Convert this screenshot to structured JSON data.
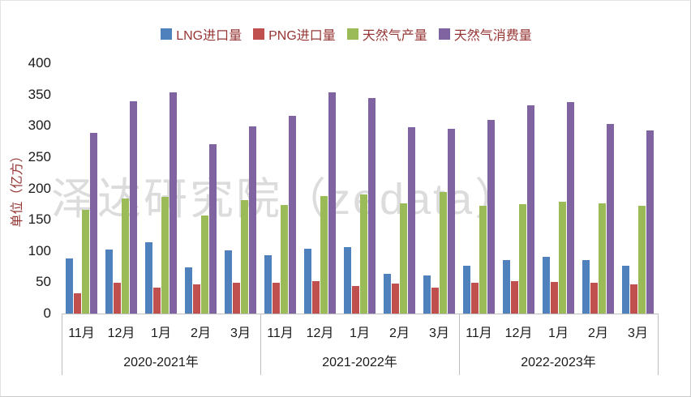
{
  "watermark": {
    "text": "泽达研究院（zedata）"
  },
  "colors": {
    "lng_blue": "#4F81BD",
    "png_red": "#C0504D",
    "production_green": "#9BBB59",
    "consumption_purple": "#8064A2",
    "axis_line": "#bfbfbf",
    "axis_title_red": "#963634",
    "watermark_gray": "#dcdcdc"
  },
  "chart_data": {
    "type": "bar",
    "title": "",
    "xlabel": "",
    "ylabel": "单位（亿方）",
    "ylim": [
      0,
      400
    ],
    "ytick_step": 50,
    "yticks": [
      0,
      50,
      100,
      150,
      200,
      250,
      300,
      350,
      400
    ],
    "grid": false,
    "legend_position": "top",
    "period_groups": [
      {
        "label": "2020-2021年",
        "months": [
          "11月",
          "12月",
          "1月",
          "2月",
          "3月"
        ]
      },
      {
        "label": "2021-2022年",
        "months": [
          "11月",
          "12月",
          "1月",
          "2月",
          "3月"
        ]
      },
      {
        "label": "2022-2023年",
        "months": [
          "11月",
          "12月",
          "1月",
          "2月",
          "3月"
        ]
      }
    ],
    "categories": [
      "11月",
      "12月",
      "1月",
      "2月",
      "3月",
      "11月",
      "12月",
      "1月",
      "2月",
      "3月",
      "11月",
      "12月",
      "1月",
      "2月",
      "3月"
    ],
    "series": [
      {
        "name": "LNG进口量",
        "color": "#4F81BD",
        "values": [
          88,
          102,
          114,
          74,
          101,
          93,
          104,
          106,
          63,
          61,
          76,
          85,
          91,
          85,
          76
        ]
      },
      {
        "name": "PNG进口量",
        "color": "#C0504D",
        "values": [
          33,
          49,
          42,
          47,
          49,
          49,
          52,
          44,
          48,
          41,
          49,
          52,
          50,
          49,
          47
        ]
      },
      {
        "name": "天然气产量",
        "color": "#9BBB59",
        "values": [
          166,
          184,
          186,
          157,
          181,
          173,
          188,
          190,
          176,
          194,
          172,
          175,
          179,
          176,
          172
        ]
      },
      {
        "name": "天然气消费量",
        "color": "#8064A2",
        "values": [
          289,
          339,
          353,
          271,
          299,
          316,
          353,
          344,
          298,
          295,
          309,
          333,
          338,
          303,
          293
        ]
      }
    ]
  }
}
